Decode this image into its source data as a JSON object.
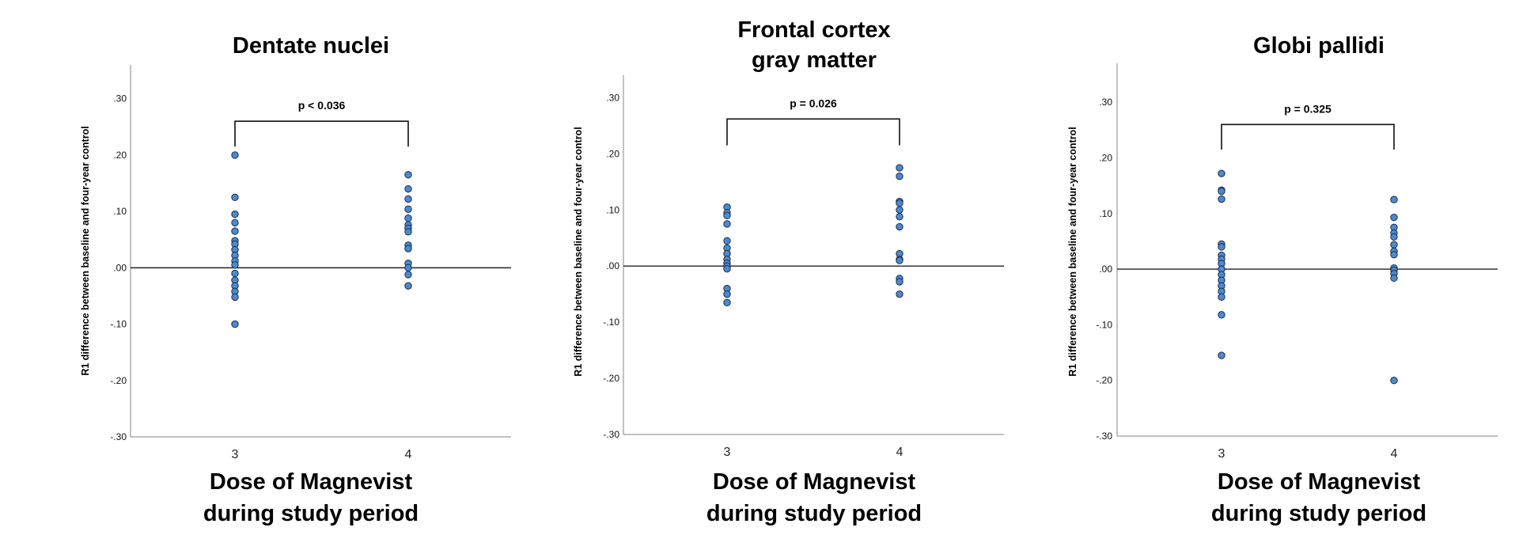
{
  "colors": {
    "point_fill": "#4a8ad2",
    "point_stroke": "#1f2d44",
    "axis": "#9a9a9a",
    "zero_line": "#222222",
    "bracket": "#111111"
  },
  "chart_data": [
    {
      "type": "scatter",
      "title_lines": [
        "Dentate nuclei"
      ],
      "xlabel_lines": [
        "Dose of Magnevist",
        "during study period"
      ],
      "ylabel": "R1 difference between baseline and four-year control",
      "categories": [
        "3",
        "4"
      ],
      "yticks": [
        ".30",
        ".20",
        ".10",
        ".00",
        "-.10",
        "-.20",
        "-.30"
      ],
      "ylim": [
        -0.3,
        0.36
      ],
      "reference_line": 0,
      "annotation": "p < 0.036",
      "bracket_y": 0.26,
      "bracket_bottom": 0.215,
      "series": [
        {
          "name": "3",
          "values": [
            0.2,
            0.125,
            0.095,
            0.08,
            0.065,
            0.048,
            0.042,
            0.032,
            0.022,
            0.012,
            0.005,
            -0.01,
            -0.022,
            -0.032,
            -0.042,
            -0.052,
            -0.1
          ]
        },
        {
          "name": "4",
          "values": [
            0.165,
            0.14,
            0.122,
            0.104,
            0.088,
            0.076,
            0.07,
            0.064,
            0.04,
            0.034,
            0.008,
            0.0,
            -0.012,
            -0.032
          ]
        }
      ]
    },
    {
      "type": "scatter",
      "title_lines": [
        "Frontal cortex",
        "gray matter"
      ],
      "xlabel_lines": [
        "Dose of Magnevist",
        "during study period"
      ],
      "ylabel": "R1 difference between baseline and four-year control",
      "categories": [
        "3",
        "4"
      ],
      "yticks": [
        ".30",
        ".20",
        ".10",
        ".00",
        "-.10",
        "-.20",
        "-.30"
      ],
      "ylim": [
        -0.3,
        0.34
      ],
      "reference_line": 0,
      "annotation": "p = 0.026",
      "bracket_y": 0.262,
      "bracket_bottom": 0.215,
      "series": [
        {
          "name": "3",
          "values": [
            0.105,
            0.095,
            0.09,
            0.075,
            0.045,
            0.032,
            0.022,
            0.012,
            0.005,
            0.0,
            -0.005,
            -0.04,
            -0.05,
            -0.065
          ]
        },
        {
          "name": "4",
          "values": [
            0.175,
            0.16,
            0.115,
            0.112,
            0.1,
            0.088,
            0.07,
            0.022,
            0.012,
            0.01,
            -0.022,
            -0.028,
            -0.05
          ]
        }
      ]
    },
    {
      "type": "scatter",
      "title_lines": [
        "Globi pallidi"
      ],
      "xlabel_lines": [
        "Dose of Magnevist",
        "during study period"
      ],
      "ylabel": "R1 difference between baseline and four-year control",
      "categories": [
        "3",
        "4"
      ],
      "yticks": [
        ".30",
        ".20",
        ".10",
        ".00",
        "-.10",
        "-.20",
        "-.30"
      ],
      "ylim": [
        -0.3,
        0.37
      ],
      "reference_line": 0,
      "annotation": "p = 0.325",
      "bracket_y": 0.26,
      "bracket_bottom": 0.215,
      "series": [
        {
          "name": "3",
          "values": [
            0.172,
            0.142,
            0.14,
            0.126,
            0.045,
            0.04,
            0.025,
            0.018,
            0.01,
            0.0,
            -0.01,
            -0.02,
            -0.03,
            -0.04,
            -0.05,
            -0.082,
            -0.155
          ]
        },
        {
          "name": "4",
          "values": [
            0.125,
            0.093,
            0.075,
            0.065,
            0.058,
            0.044,
            0.032,
            0.026,
            0.002,
            -0.002,
            -0.008,
            -0.016,
            -0.2
          ]
        }
      ]
    }
  ]
}
